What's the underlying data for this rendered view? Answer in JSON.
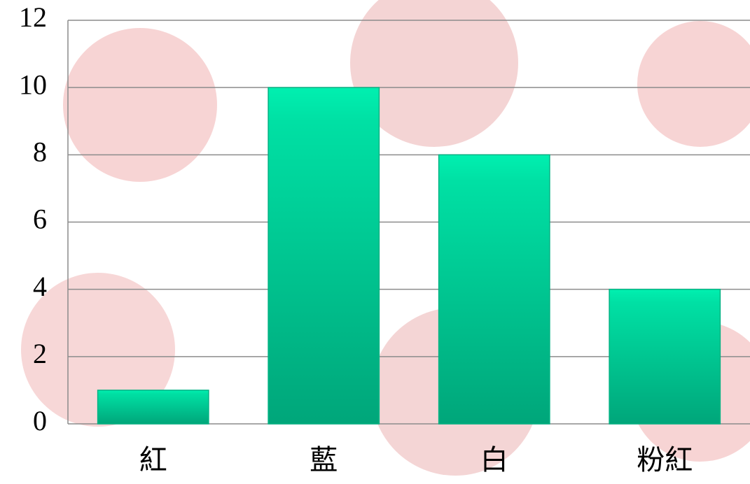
{
  "chart_data": {
    "type": "bar",
    "categories": [
      "紅",
      "藍",
      "白",
      "粉紅"
    ],
    "values": [
      1,
      10,
      8,
      4
    ],
    "color": "#00b383",
    "ylim": [
      0,
      12
    ],
    "yticks": [
      0,
      2,
      4,
      6,
      8,
      10,
      12
    ],
    "grid": true
  }
}
